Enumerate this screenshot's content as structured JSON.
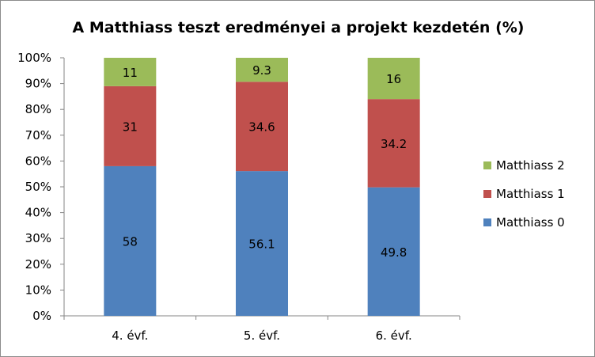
{
  "chart_data": {
    "type": "bar",
    "stacked": true,
    "title": "A Matthiass teszt eredményei a projekt kezdetén (%)",
    "xlabel": "",
    "ylabel": "",
    "categories": [
      "4. évf.",
      "5. évf.",
      "6. évf."
    ],
    "series": [
      {
        "name": "Matthiass 0",
        "values": [
          58,
          56.1,
          49.8
        ],
        "color": "#4f81bd"
      },
      {
        "name": "Matthiass 1",
        "values": [
          31,
          34.6,
          34.2
        ],
        "color": "#c0504d"
      },
      {
        "name": "Matthiass 2",
        "values": [
          11,
          9.3,
          16
        ],
        "color": "#9bbb59"
      }
    ],
    "ylim": [
      0,
      100
    ],
    "y_ticks": [
      "0%",
      "10%",
      "20%",
      "30%",
      "40%",
      "50%",
      "60%",
      "70%",
      "80%",
      "90%",
      "100%"
    ],
    "grid": false,
    "legend_position": "right",
    "legend_order": [
      "Matthiass 2",
      "Matthiass 1",
      "Matthiass 0"
    ]
  }
}
